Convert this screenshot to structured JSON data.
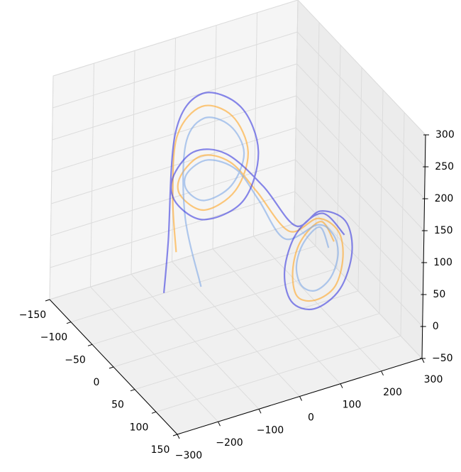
{
  "chart_data": {
    "type": "line3d",
    "xlim": [
      -300,
      300
    ],
    "xticks": [
      {
        "value": -300,
        "label": "−300"
      },
      {
        "value": -200,
        "label": "−200"
      },
      {
        "value": -100,
        "label": "−100"
      },
      0,
      100,
      200,
      300
    ],
    "ylim": [
      -150,
      150
    ],
    "yticks": [
      {
        "value": -150,
        "label": "−150"
      },
      {
        "value": -100,
        "label": "−100"
      },
      {
        "value": -50,
        "label": "−50"
      },
      0,
      50,
      100,
      150
    ],
    "zlim": [
      -50,
      300
    ],
    "zticks": [
      {
        "value": -50,
        "label": "−50"
      },
      0,
      50,
      100,
      150,
      200,
      250,
      300
    ],
    "grid": true,
    "series": [
      {
        "color": "#ffa726",
        "x": [
          -150,
          -150,
          -120,
          -50,
          20,
          50,
          20,
          -50,
          -110,
          -120,
          -80,
          -20,
          30,
          90,
          150,
          195,
          210,
          195,
          150,
          105,
          90,
          105,
          150,
          180
        ],
        "y": [
          0,
          -10,
          -30,
          -40,
          -35,
          -25,
          -25,
          -30,
          -30,
          -20,
          -10,
          0,
          15,
          35,
          45,
          50,
          48,
          45,
          42,
          42,
          45,
          48,
          52,
          55
        ],
        "z": [
          100,
          180,
          255,
          280,
          255,
          200,
          145,
          125,
          160,
          200,
          230,
          215,
          170,
          110,
          125,
          100,
          55,
          10,
          -5,
          10,
          55,
          100,
          125,
          90
        ]
      },
      {
        "color": "#7fa9e6",
        "x": [
          -130,
          -140,
          -110,
          -50,
          10,
          40,
          10,
          -50,
          -100,
          -110,
          -70,
          -10,
          30,
          80,
          150,
          185,
          200,
          185,
          150,
          115,
          100,
          115,
          150,
          170
        ],
        "y": [
          40,
          10,
          -20,
          -35,
          -30,
          -25,
          -25,
          -30,
          -25,
          -15,
          -5,
          5,
          20,
          35,
          45,
          48,
          46,
          44,
          42,
          42,
          44,
          46,
          50,
          52
        ],
        "z": [
          70,
          160,
          245,
          265,
          245,
          200,
          155,
          140,
          170,
          205,
          225,
          205,
          160,
          100,
          115,
          95,
          60,
          25,
          10,
          25,
          60,
          95,
          115,
          80
        ]
      },
      {
        "color": "#3b3be0",
        "x": [
          -200,
          -170,
          -135,
          -50,
          35,
          70,
          35,
          -50,
          -120,
          -140,
          -100,
          -30,
          40,
          100,
          150,
          207,
          230,
          207,
          150,
          93,
          70,
          93,
          150,
          200
        ],
        "y": [
          20,
          0,
          -20,
          -40,
          -30,
          -20,
          -20,
          -30,
          -30,
          -20,
          -10,
          0,
          20,
          40,
          50,
          55,
          50,
          45,
          40,
          40,
          45,
          50,
          55,
          60
        ],
        "z": [
          60,
          120,
          270,
          300,
          270,
          200,
          130,
          110,
          150,
          200,
          240,
          230,
          180,
          120,
          140,
          117,
          60,
          3,
          -20,
          3,
          60,
          117,
          140,
          100
        ]
      }
    ]
  }
}
